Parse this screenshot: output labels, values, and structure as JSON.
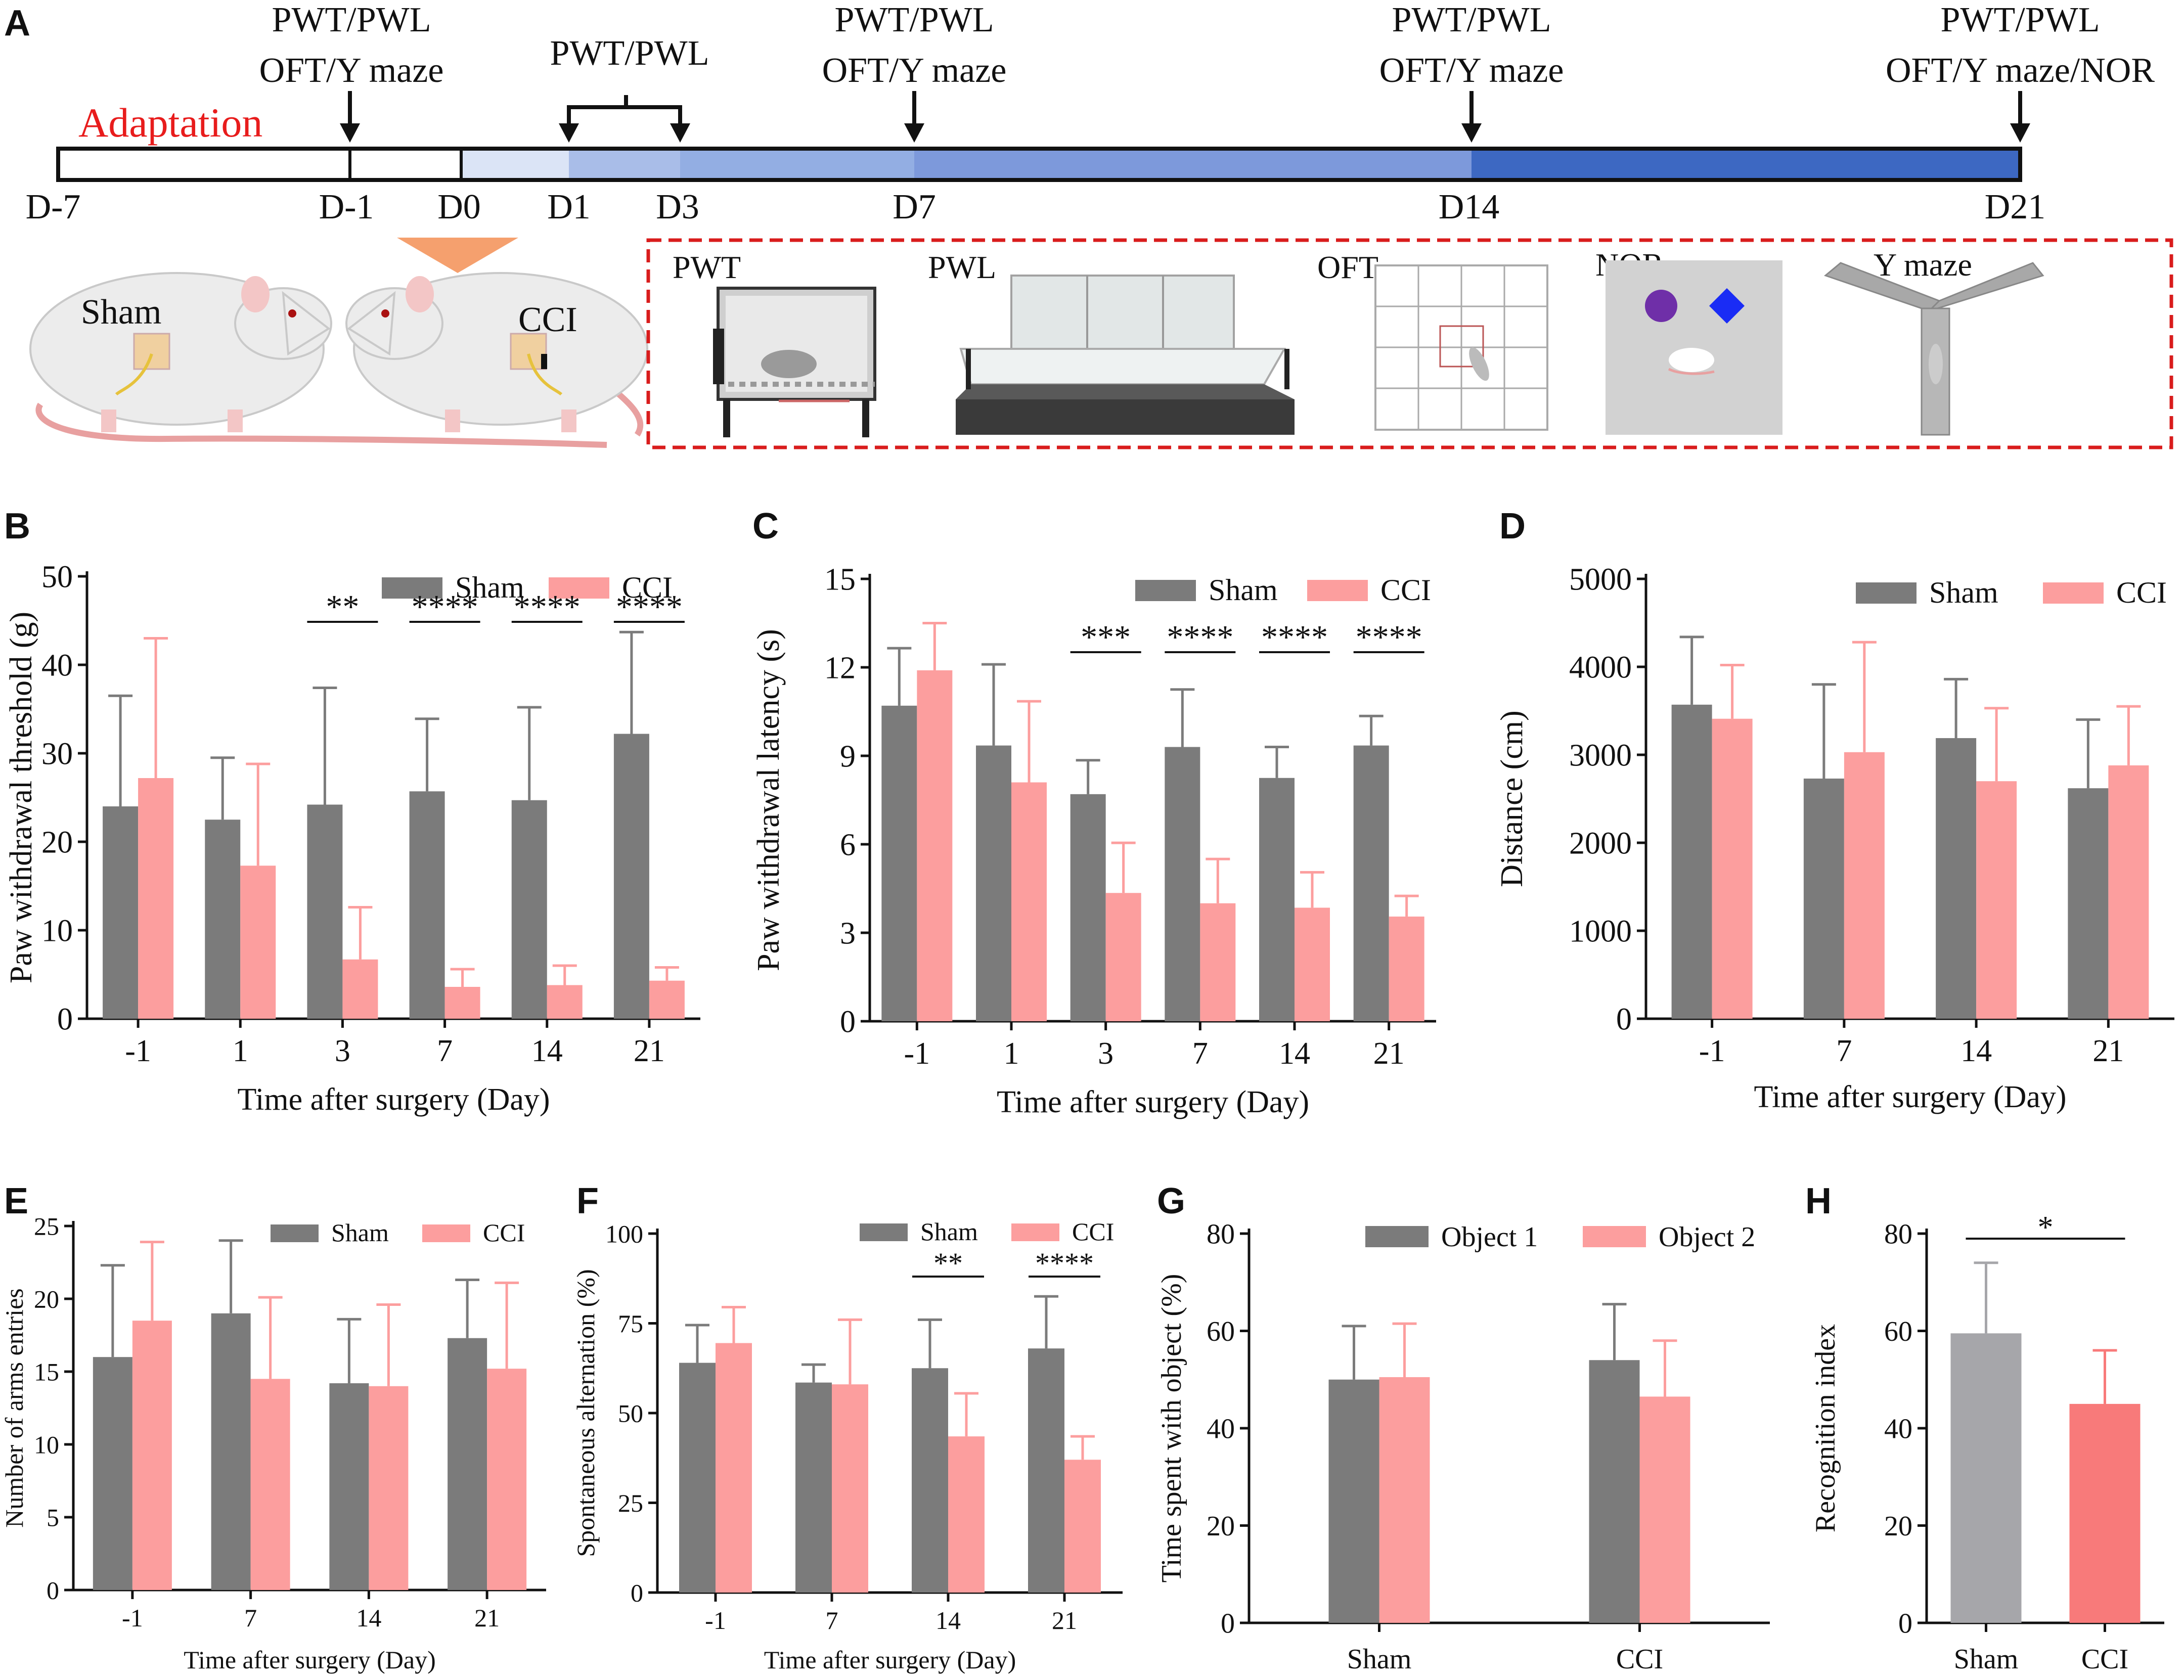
{
  "figure": {
    "panel_labels": [
      "A",
      "B",
      "C",
      "D",
      "E",
      "F",
      "G",
      "H"
    ],
    "colors": {
      "sham": "#7b7b7b",
      "cci": "#fc9e9e",
      "sham_h": "#a6a6aa",
      "cci_h": "#f87a7a",
      "bar_a": "#3a64bc",
      "frame": "#d91c1c",
      "text": "#111111"
    }
  },
  "timeline": {
    "adaptation_label": "Adaptation",
    "ticks": [
      "D-7",
      "D-1",
      "D0",
      "D1",
      "D3",
      "D7",
      "D14",
      "D21"
    ],
    "tests": [
      {
        "line1": "PWT/PWL",
        "line2": "OFT/Y maze"
      },
      {
        "line1": "PWT/PWL",
        "line2": ""
      },
      {
        "line1": "PWT/PWL",
        "line2": "OFT/Y maze"
      },
      {
        "line1": "PWT/PWL",
        "line2": "OFT/Y maze"
      },
      {
        "line1": "PWT/PWL",
        "line2": "OFT/Y maze/NOR"
      }
    ],
    "rats": {
      "sham_label": "Sham",
      "cci_label": "CCI"
    },
    "tests_panel": {
      "pwt": "PWT",
      "pwl": "PWL",
      "oft": "OFT",
      "nor": "NOR",
      "ymaze": "Y maze"
    }
  },
  "chart_data": [
    {
      "panel": "B",
      "type": "bar",
      "title": "",
      "xlabel": "Time after surgery (Day)",
      "ylabel": "Paw withdrawal threshold (g)",
      "ylim": [
        0,
        50
      ],
      "yticks": [
        0,
        10,
        20,
        30,
        40,
        50
      ],
      "categories": [
        "-1",
        "1",
        "3",
        "7",
        "14",
        "21"
      ],
      "series": [
        {
          "name": "Sham",
          "values": [
            24,
            22.5,
            24.2,
            25.7,
            24.7,
            32.2
          ],
          "errors": [
            12.5,
            7,
            13.2,
            8.2,
            10.5,
            11.5
          ]
        },
        {
          "name": "CCI",
          "values": [
            27.2,
            17.3,
            6.7,
            3.6,
            3.8,
            4.3
          ],
          "errors": [
            15.8,
            11.5,
            5.9,
            2,
            2.2,
            1.5
          ]
        }
      ],
      "significance": [
        {
          "category": "3",
          "label": "**"
        },
        {
          "category": "7",
          "label": "****"
        },
        {
          "category": "14",
          "label": "****"
        },
        {
          "category": "21",
          "label": "****"
        }
      ],
      "legend": "top-right"
    },
    {
      "panel": "C",
      "type": "bar",
      "title": "",
      "xlabel": "Time after surgery (Day)",
      "ylabel": "Paw withdrawal latency (s)",
      "ylim": [
        0,
        15
      ],
      "yticks": [
        0,
        3,
        6,
        9,
        12,
        15
      ],
      "categories": [
        "-1",
        "1",
        "3",
        "7",
        "14",
        "21"
      ],
      "series": [
        {
          "name": "Sham",
          "values": [
            10.7,
            9.35,
            7.7,
            9.3,
            8.25,
            9.35
          ],
          "errors": [
            1.95,
            2.75,
            1.15,
            1.95,
            1.05,
            1
          ]
        },
        {
          "name": "CCI",
          "values": [
            11.9,
            8.1,
            4.35,
            4,
            3.85,
            3.55
          ],
          "errors": [
            1.6,
            2.75,
            1.7,
            1.5,
            1.2,
            0.7
          ]
        }
      ],
      "significance": [
        {
          "category": "3",
          "label": "***"
        },
        {
          "category": "7",
          "label": "****"
        },
        {
          "category": "14",
          "label": "****"
        },
        {
          "category": "21",
          "label": "****"
        }
      ],
      "legend": "top-right"
    },
    {
      "panel": "D",
      "type": "bar",
      "title": "",
      "xlabel": "Time after surgery (Day)",
      "ylabel": "Distance (cm)",
      "ylim": [
        0,
        5000
      ],
      "yticks": [
        0,
        1000,
        2000,
        3000,
        4000,
        5000
      ],
      "categories": [
        "-1",
        "7",
        "14",
        "21"
      ],
      "series": [
        {
          "name": "Sham",
          "values": [
            3570,
            2730,
            3190,
            2620
          ],
          "errors": [
            770,
            1070,
            670,
            780
          ]
        },
        {
          "name": "CCI",
          "values": [
            3410,
            3030,
            2700,
            2880
          ],
          "errors": [
            610,
            1250,
            830,
            670
          ]
        }
      ],
      "significance": [],
      "legend": "top-right"
    },
    {
      "panel": "E",
      "type": "bar",
      "title": "",
      "xlabel": "Time after surgery (Day)",
      "ylabel": "Number of arms entries",
      "ylim": [
        0,
        25
      ],
      "yticks": [
        0,
        5,
        10,
        15,
        20,
        25
      ],
      "categories": [
        "-1",
        "7",
        "14",
        "21"
      ],
      "series": [
        {
          "name": "Sham",
          "values": [
            16,
            19,
            14.2,
            17.3
          ],
          "errors": [
            6.3,
            5,
            4.4,
            4
          ]
        },
        {
          "name": "CCI",
          "values": [
            18.5,
            14.5,
            14,
            15.2
          ],
          "errors": [
            5.4,
            5.6,
            5.6,
            5.9
          ]
        }
      ],
      "significance": [],
      "legend": "top-right"
    },
    {
      "panel": "F",
      "type": "bar",
      "title": "",
      "xlabel": "Time after surgery (Day)",
      "ylabel": "Spontaneous alternation (%)",
      "ylim": [
        0,
        100
      ],
      "yticks": [
        0,
        25,
        50,
        75,
        100
      ],
      "categories": [
        "-1",
        "7",
        "14",
        "21"
      ],
      "series": [
        {
          "name": "Sham",
          "values": [
            64,
            58.5,
            62.5,
            68
          ],
          "errors": [
            10.5,
            5,
            13.5,
            14.5
          ]
        },
        {
          "name": "CCI",
          "values": [
            69.5,
            58,
            43.5,
            37
          ],
          "errors": [
            10,
            18,
            12,
            6.5
          ]
        }
      ],
      "significance": [
        {
          "category": "14",
          "label": "**"
        },
        {
          "category": "21",
          "label": "****"
        }
      ],
      "legend": "top-right"
    },
    {
      "panel": "G",
      "type": "bar",
      "title": "",
      "xlabel": "",
      "ylabel": "Time spent with object (%)",
      "ylim": [
        0,
        80
      ],
      "yticks": [
        0,
        20,
        40,
        60,
        80
      ],
      "categories": [
        "Sham",
        "CCI"
      ],
      "series": [
        {
          "name": "Object 1",
          "values": [
            50,
            54
          ],
          "errors": [
            11,
            11.5
          ]
        },
        {
          "name": "Object 2",
          "values": [
            50.5,
            46.5
          ],
          "errors": [
            11,
            11.5
          ]
        }
      ],
      "significance": [],
      "legend": "top"
    },
    {
      "panel": "H",
      "type": "bar",
      "title": "",
      "xlabel": "",
      "ylabel": "Recognition index",
      "ylim": [
        0,
        80
      ],
      "yticks": [
        0,
        20,
        40,
        60,
        80
      ],
      "categories": [
        "Sham",
        "CCI"
      ],
      "series": [
        {
          "name": "Recognition index",
          "values": [
            59.5,
            45
          ],
          "errors": [
            14.5,
            11
          ]
        }
      ],
      "significance": [
        {
          "label": "*",
          "span": [
            "Sham",
            "CCI"
          ]
        }
      ],
      "legend": "none"
    }
  ]
}
